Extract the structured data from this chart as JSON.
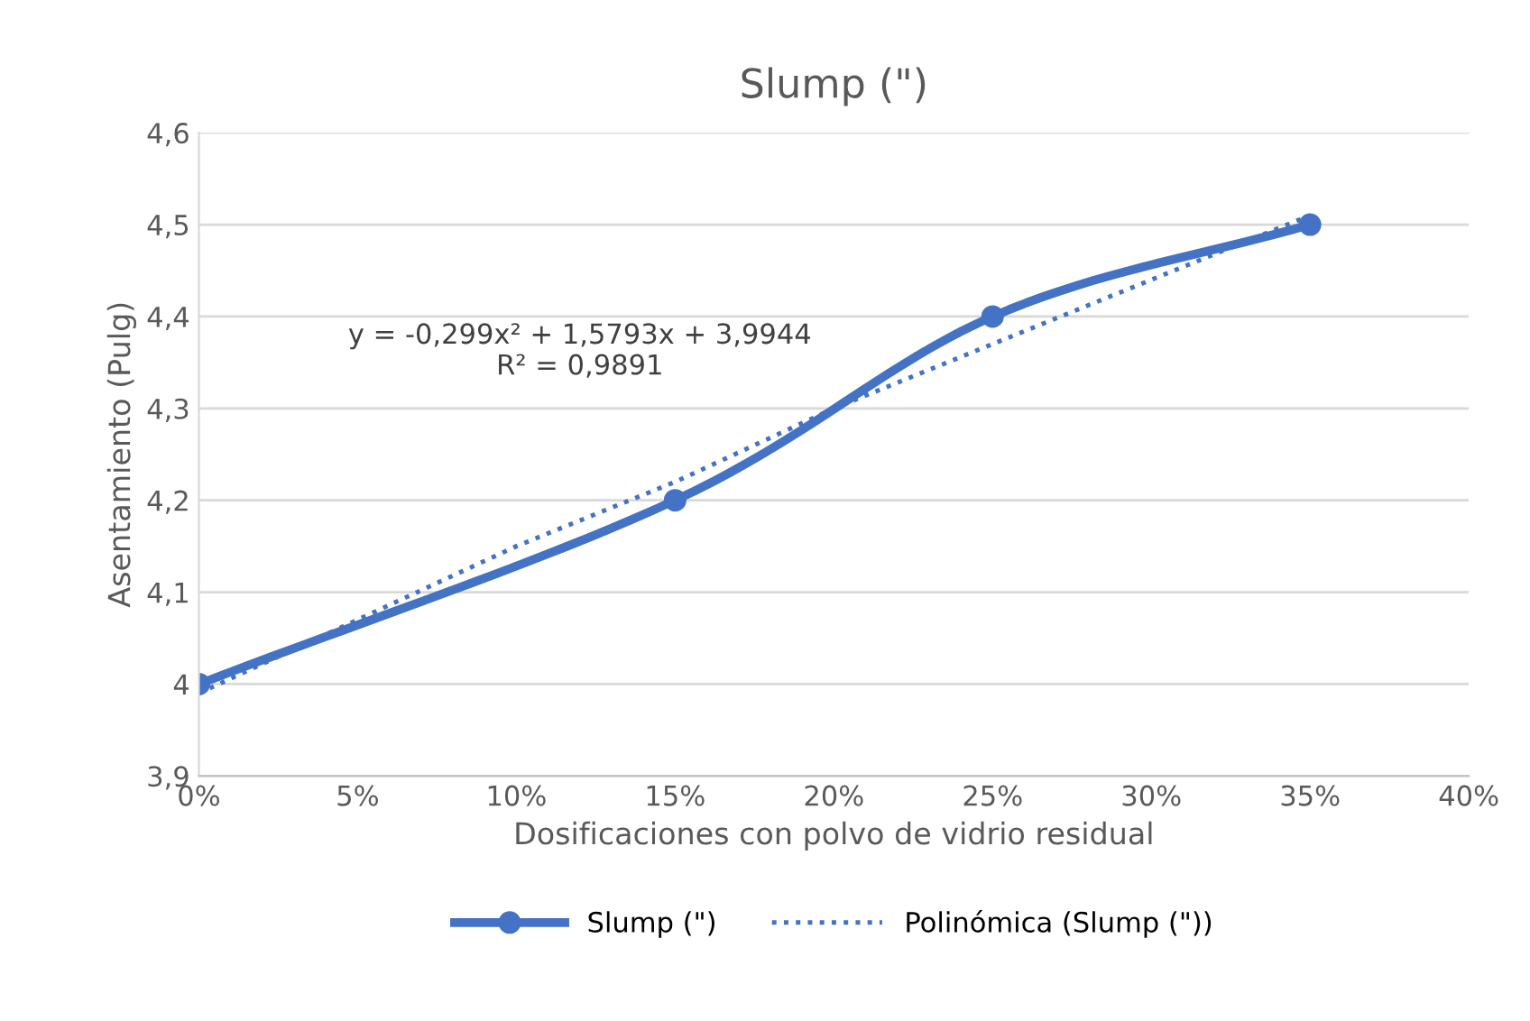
{
  "chart_data": {
    "type": "line",
    "title": "Slump (\")",
    "xlabel": "Dosificaciones con polvo de vidrio residual",
    "ylabel": "Asentamiento (Pulg)",
    "xlim": [
      0,
      40
    ],
    "xticks": [
      {
        "value": 0,
        "label": "0%"
      },
      {
        "value": 5,
        "label": "5%"
      },
      {
        "value": 10,
        "label": "10%"
      },
      {
        "value": 15,
        "label": "15%"
      },
      {
        "value": 20,
        "label": "20%"
      },
      {
        "value": 25,
        "label": "25%"
      },
      {
        "value": 30,
        "label": "30%"
      },
      {
        "value": 35,
        "label": "35%"
      },
      {
        "value": 40,
        "label": "40%"
      }
    ],
    "ylim": [
      3.9,
      4.6
    ],
    "yticks": [
      {
        "value": 3.9,
        "label": "3,9"
      },
      4,
      {
        "value": 4.1,
        "label": "4,1"
      },
      {
        "value": 4.2,
        "label": "4,2"
      },
      {
        "value": 4.3,
        "label": "4,3"
      },
      {
        "value": 4.4,
        "label": "4,4"
      },
      {
        "value": 4.5,
        "label": "4,5"
      },
      {
        "value": 4.6,
        "label": "4,6"
      }
    ],
    "series": [
      {
        "name": "Slump (\")",
        "color": "#4472c4",
        "x": [
          0,
          15,
          25,
          35
        ],
        "values": [
          4.0,
          4.2,
          4.4,
          4.5
        ],
        "marker": "circle",
        "line_style": "solid"
      },
      {
        "name": "Polinómica (Slump (\"))",
        "color": "#4472c4",
        "x": [
          0,
          5,
          10,
          15,
          20,
          25,
          30,
          35
        ],
        "values": [
          3.99,
          4.07,
          4.15,
          4.22,
          4.3,
          4.37,
          4.44,
          4.51
        ],
        "marker": "none",
        "line_style": "dotted"
      }
    ],
    "annotations": [
      "y = -0,299x² + 1,5793x + 3,9944\nR² = 0,9891"
    ],
    "grid": "y",
    "legend": "bottom"
  }
}
